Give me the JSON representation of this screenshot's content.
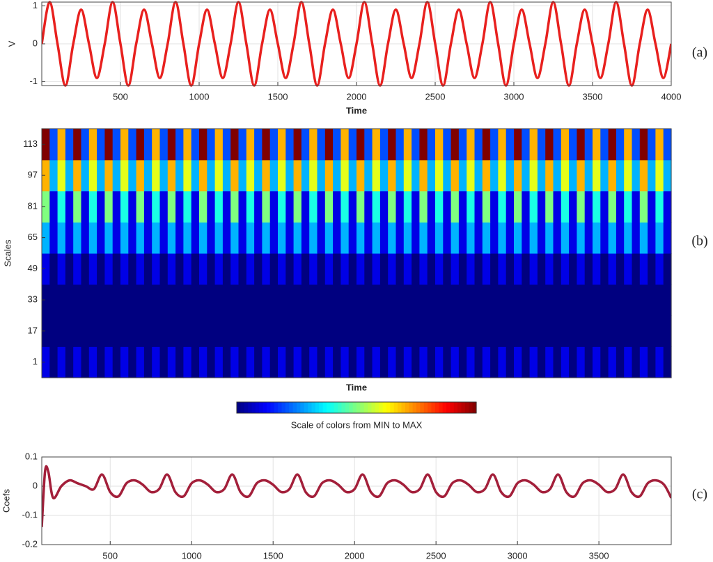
{
  "chart_data": [
    {
      "type": "line",
      "panel_label": "(a)",
      "xlabel": "Time",
      "ylabel": "V",
      "x": [
        0,
        50,
        100,
        150,
        200,
        250,
        300,
        350,
        400,
        450,
        500,
        550,
        600,
        650,
        700,
        750,
        800,
        850,
        900,
        950,
        1000,
        1050,
        1100,
        1150,
        1200,
        1250,
        1300,
        1350,
        1400,
        1450,
        1500,
        1550,
        1600,
        1650,
        1700,
        1750,
        1800,
        1850,
        1900,
        1950,
        2000,
        2050,
        2100,
        2150,
        2200,
        2250,
        2300,
        2350,
        2400,
        2450,
        2500,
        2550,
        2600,
        2650,
        2700,
        2750,
        2800,
        2850,
        2900,
        2950,
        3000,
        3050,
        3100,
        3150,
        3200,
        3250,
        3300,
        3350,
        3400,
        3450,
        3500,
        3550,
        3600,
        3650,
        3700,
        3750,
        3800,
        3850,
        3900,
        3950,
        4000
      ],
      "series": [
        {
          "color": "#e8201e",
          "values": [
            0,
            1.1,
            0,
            -1.1,
            0,
            0.9,
            0,
            -0.9,
            0,
            1.1,
            0,
            -1.1,
            0,
            0.9,
            0,
            -0.9,
            0,
            1.1,
            0,
            -1.1,
            0,
            0.9,
            0,
            -0.9,
            0,
            1.1,
            0,
            -1.1,
            0,
            0.9,
            0,
            -0.9,
            0,
            1.1,
            0,
            -1.1,
            0,
            0.9,
            0,
            -0.9,
            0,
            1.1,
            0,
            -1.1,
            0,
            0.9,
            0,
            -0.9,
            0,
            1.1,
            0,
            -1.1,
            0,
            0.9,
            0,
            -0.9,
            0,
            1.1,
            0,
            -1.1,
            0,
            0.9,
            0,
            -0.9,
            0,
            1.1,
            0,
            -1.1,
            0,
            0.9,
            0,
            -0.9,
            0,
            1.1,
            0,
            -1.1,
            0,
            0.9,
            0,
            -0.9,
            0
          ]
        }
      ],
      "xlim": [
        0,
        4000
      ],
      "ylim": [
        -1.1,
        1.1
      ],
      "xticks": [
        500,
        1000,
        1500,
        2000,
        2500,
        3000,
        3500,
        4000
      ],
      "yticks": [
        -1,
        0,
        1
      ],
      "grid": true
    },
    {
      "type": "heatmap",
      "panel_label": "(b)",
      "xlabel": "Time",
      "ylabel": "Scales",
      "xlim": [
        0,
        4000
      ],
      "ylim": [
        -7,
        121
      ],
      "yticks": [
        1,
        17,
        33,
        49,
        65,
        81,
        97,
        113
      ],
      "zlim": [
        0,
        10
      ],
      "colormap": "jet",
      "colorbar_label": "Scale of colors from MIN to MAX",
      "z": [
        [
          1,
          0,
          1,
          0,
          1,
          0,
          1,
          0,
          1,
          0,
          1,
          0,
          1,
          0,
          1,
          0,
          1,
          0,
          1,
          0,
          1,
          0,
          1,
          0,
          1,
          0,
          1,
          0,
          1,
          0,
          1,
          0,
          1,
          0,
          1,
          0,
          1,
          0,
          1,
          0,
          1,
          0,
          1,
          0,
          1,
          0,
          1,
          0,
          1,
          0,
          1,
          0,
          1,
          0,
          1,
          0,
          1,
          0,
          1,
          0,
          1,
          0,
          1,
          0,
          1,
          0,
          1,
          0,
          1,
          0,
          1,
          0,
          1,
          0,
          1,
          0,
          1,
          0,
          1,
          0
        ],
        [
          0,
          0,
          0,
          0,
          0,
          0,
          0,
          0,
          0,
          0,
          0,
          0,
          0,
          0,
          0,
          0,
          0,
          0,
          0,
          0,
          0,
          0,
          0,
          0,
          0,
          0,
          0,
          0,
          0,
          0,
          0,
          0,
          0,
          0,
          0,
          0,
          0,
          0,
          0,
          0,
          0,
          0,
          0,
          0,
          0,
          0,
          0,
          0,
          0,
          0,
          0,
          0,
          0,
          0,
          0,
          0,
          0,
          0,
          0,
          0,
          0,
          0,
          0,
          0,
          0,
          0,
          0,
          0,
          0,
          0,
          0,
          0,
          0,
          0,
          0,
          0,
          0,
          0,
          0,
          0
        ],
        [
          0,
          0,
          0,
          0,
          0,
          0,
          0,
          0,
          0,
          0,
          0,
          0,
          0,
          0,
          0,
          0,
          0,
          0,
          0,
          0,
          0,
          0,
          0,
          0,
          0,
          0,
          0,
          0,
          0,
          0,
          0,
          0,
          0,
          0,
          0,
          0,
          0,
          0,
          0,
          0,
          0,
          0,
          0,
          0,
          0,
          0,
          0,
          0,
          0,
          0,
          0,
          0,
          0,
          0,
          0,
          0,
          0,
          0,
          0,
          0,
          0,
          0,
          0,
          0,
          0,
          0,
          0,
          0,
          0,
          0,
          0,
          0,
          0,
          0,
          0,
          0,
          0,
          0,
          0,
          0
        ],
        [
          1,
          0,
          1,
          0,
          1,
          0,
          1,
          0,
          1,
          0,
          1,
          0,
          1,
          0,
          1,
          0,
          1,
          0,
          1,
          0,
          1,
          0,
          1,
          0,
          1,
          0,
          1,
          0,
          1,
          0,
          1,
          0,
          1,
          0,
          1,
          0,
          1,
          0,
          1,
          0,
          1,
          0,
          1,
          0,
          1,
          0,
          1,
          0,
          1,
          0,
          1,
          0,
          1,
          0,
          1,
          0,
          1,
          0,
          1,
          0,
          1,
          0,
          1,
          0,
          1,
          0,
          1,
          0,
          1,
          0,
          1,
          0,
          1,
          0,
          1,
          0,
          1,
          0,
          1,
          0
        ],
        [
          3,
          1,
          3,
          1,
          3,
          1,
          3,
          1,
          3,
          1,
          3,
          1,
          3,
          1,
          3,
          1,
          3,
          1,
          3,
          1,
          3,
          1,
          3,
          1,
          3,
          1,
          3,
          1,
          3,
          1,
          3,
          1,
          3,
          1,
          3,
          1,
          3,
          1,
          3,
          1,
          3,
          1,
          3,
          1,
          3,
          1,
          3,
          1,
          3,
          1,
          3,
          1,
          3,
          1,
          3,
          1,
          3,
          1,
          3,
          1,
          3,
          1,
          3,
          1,
          3,
          1,
          3,
          1,
          3,
          1,
          3,
          1,
          3,
          1,
          3,
          1,
          3,
          1,
          3,
          1
        ],
        [
          5,
          1,
          4,
          1,
          5,
          1,
          4,
          1,
          5,
          1,
          4,
          1,
          5,
          1,
          4,
          1,
          5,
          1,
          4,
          1,
          5,
          1,
          4,
          1,
          5,
          1,
          4,
          1,
          5,
          1,
          4,
          1,
          5,
          1,
          4,
          1,
          5,
          1,
          4,
          1,
          5,
          1,
          4,
          1,
          5,
          1,
          4,
          1,
          5,
          1,
          4,
          1,
          5,
          1,
          4,
          1,
          5,
          1,
          4,
          1,
          5,
          1,
          4,
          1,
          5,
          1,
          4,
          1,
          5,
          1,
          4,
          1,
          5,
          1,
          4,
          1,
          5,
          1,
          4,
          1
        ],
        [
          7,
          3,
          6,
          3,
          7,
          3,
          6,
          3,
          7,
          3,
          6,
          3,
          7,
          3,
          6,
          3,
          7,
          3,
          6,
          3,
          7,
          3,
          6,
          3,
          7,
          3,
          6,
          3,
          7,
          3,
          6,
          3,
          7,
          3,
          6,
          3,
          7,
          3,
          6,
          3,
          7,
          3,
          6,
          3,
          7,
          3,
          6,
          3,
          7,
          3,
          6,
          3,
          7,
          3,
          6,
          3,
          7,
          3,
          6,
          3,
          7,
          3,
          6,
          3,
          7,
          3,
          6,
          3,
          7,
          3,
          6,
          3,
          7,
          3,
          6,
          3,
          7,
          3,
          6,
          3
        ],
        [
          10,
          2,
          7,
          2,
          10,
          2,
          7,
          2,
          10,
          2,
          7,
          2,
          10,
          2,
          7,
          2,
          10,
          2,
          7,
          2,
          10,
          2,
          7,
          2,
          10,
          2,
          7,
          2,
          10,
          2,
          7,
          2,
          10,
          2,
          7,
          2,
          10,
          2,
          7,
          2,
          10,
          2,
          7,
          2,
          10,
          2,
          7,
          2,
          10,
          2,
          7,
          2,
          10,
          2,
          7,
          2,
          10,
          2,
          7,
          2,
          10,
          2,
          7,
          2,
          10,
          2,
          7,
          2,
          10,
          2,
          7,
          2,
          10,
          2,
          7,
          2,
          10,
          2,
          7,
          2
        ]
      ]
    },
    {
      "type": "line",
      "panel_label": "(c)",
      "ylabel": "Coefs",
      "x": [
        80,
        100,
        120,
        150,
        200,
        250,
        300,
        350,
        400,
        450,
        500,
        550,
        600,
        650,
        700,
        750,
        800,
        850,
        900,
        950,
        1000,
        1050,
        1100,
        1150,
        1200,
        1250,
        1300,
        1350,
        1400,
        1450,
        1500,
        1550,
        1600,
        1650,
        1700,
        1750,
        1800,
        1850,
        1900,
        1950,
        2000,
        2050,
        2100,
        2150,
        2200,
        2250,
        2300,
        2350,
        2400,
        2450,
        2500,
        2550,
        2600,
        2650,
        2700,
        2750,
        2800,
        2850,
        2900,
        2950,
        3000,
        3050,
        3100,
        3150,
        3200,
        3250,
        3300,
        3350,
        3400,
        3450,
        3500,
        3550,
        3600,
        3650,
        3700,
        3750,
        3800,
        3850,
        3900,
        3944
      ],
      "series": [
        {
          "color": "#a31f3a",
          "values": [
            -0.14,
            0.05,
            0.05,
            -0.04,
            0.0,
            0.02,
            0.01,
            0.0,
            -0.01,
            0.04,
            -0.02,
            -0.035,
            0.01,
            0.02,
            0.005,
            -0.02,
            -0.01,
            0.04,
            -0.02,
            -0.035,
            0.01,
            0.02,
            0.005,
            -0.02,
            -0.01,
            0.04,
            -0.02,
            -0.035,
            0.01,
            0.02,
            0.005,
            -0.02,
            -0.01,
            0.04,
            -0.02,
            -0.035,
            0.01,
            0.02,
            0.005,
            -0.02,
            -0.01,
            0.04,
            -0.02,
            -0.035,
            0.01,
            0.02,
            0.005,
            -0.02,
            -0.01,
            0.04,
            -0.02,
            -0.035,
            0.01,
            0.02,
            0.005,
            -0.02,
            -0.01,
            0.04,
            -0.02,
            -0.035,
            0.01,
            0.02,
            0.005,
            -0.02,
            -0.01,
            0.04,
            -0.02,
            -0.035,
            0.01,
            0.02,
            0.005,
            -0.02,
            -0.01,
            0.04,
            -0.02,
            -0.035,
            0.01,
            0.02,
            0.005,
            -0.04
          ]
        }
      ],
      "xlim": [
        80,
        3944
      ],
      "ylim": [
        -0.2,
        0.1
      ],
      "xticks": [
        500,
        1000,
        1500,
        2000,
        2500,
        3000,
        3500
      ],
      "yticks": [
        -0.2,
        -0.1,
        0,
        0.1
      ],
      "grid": true
    }
  ]
}
